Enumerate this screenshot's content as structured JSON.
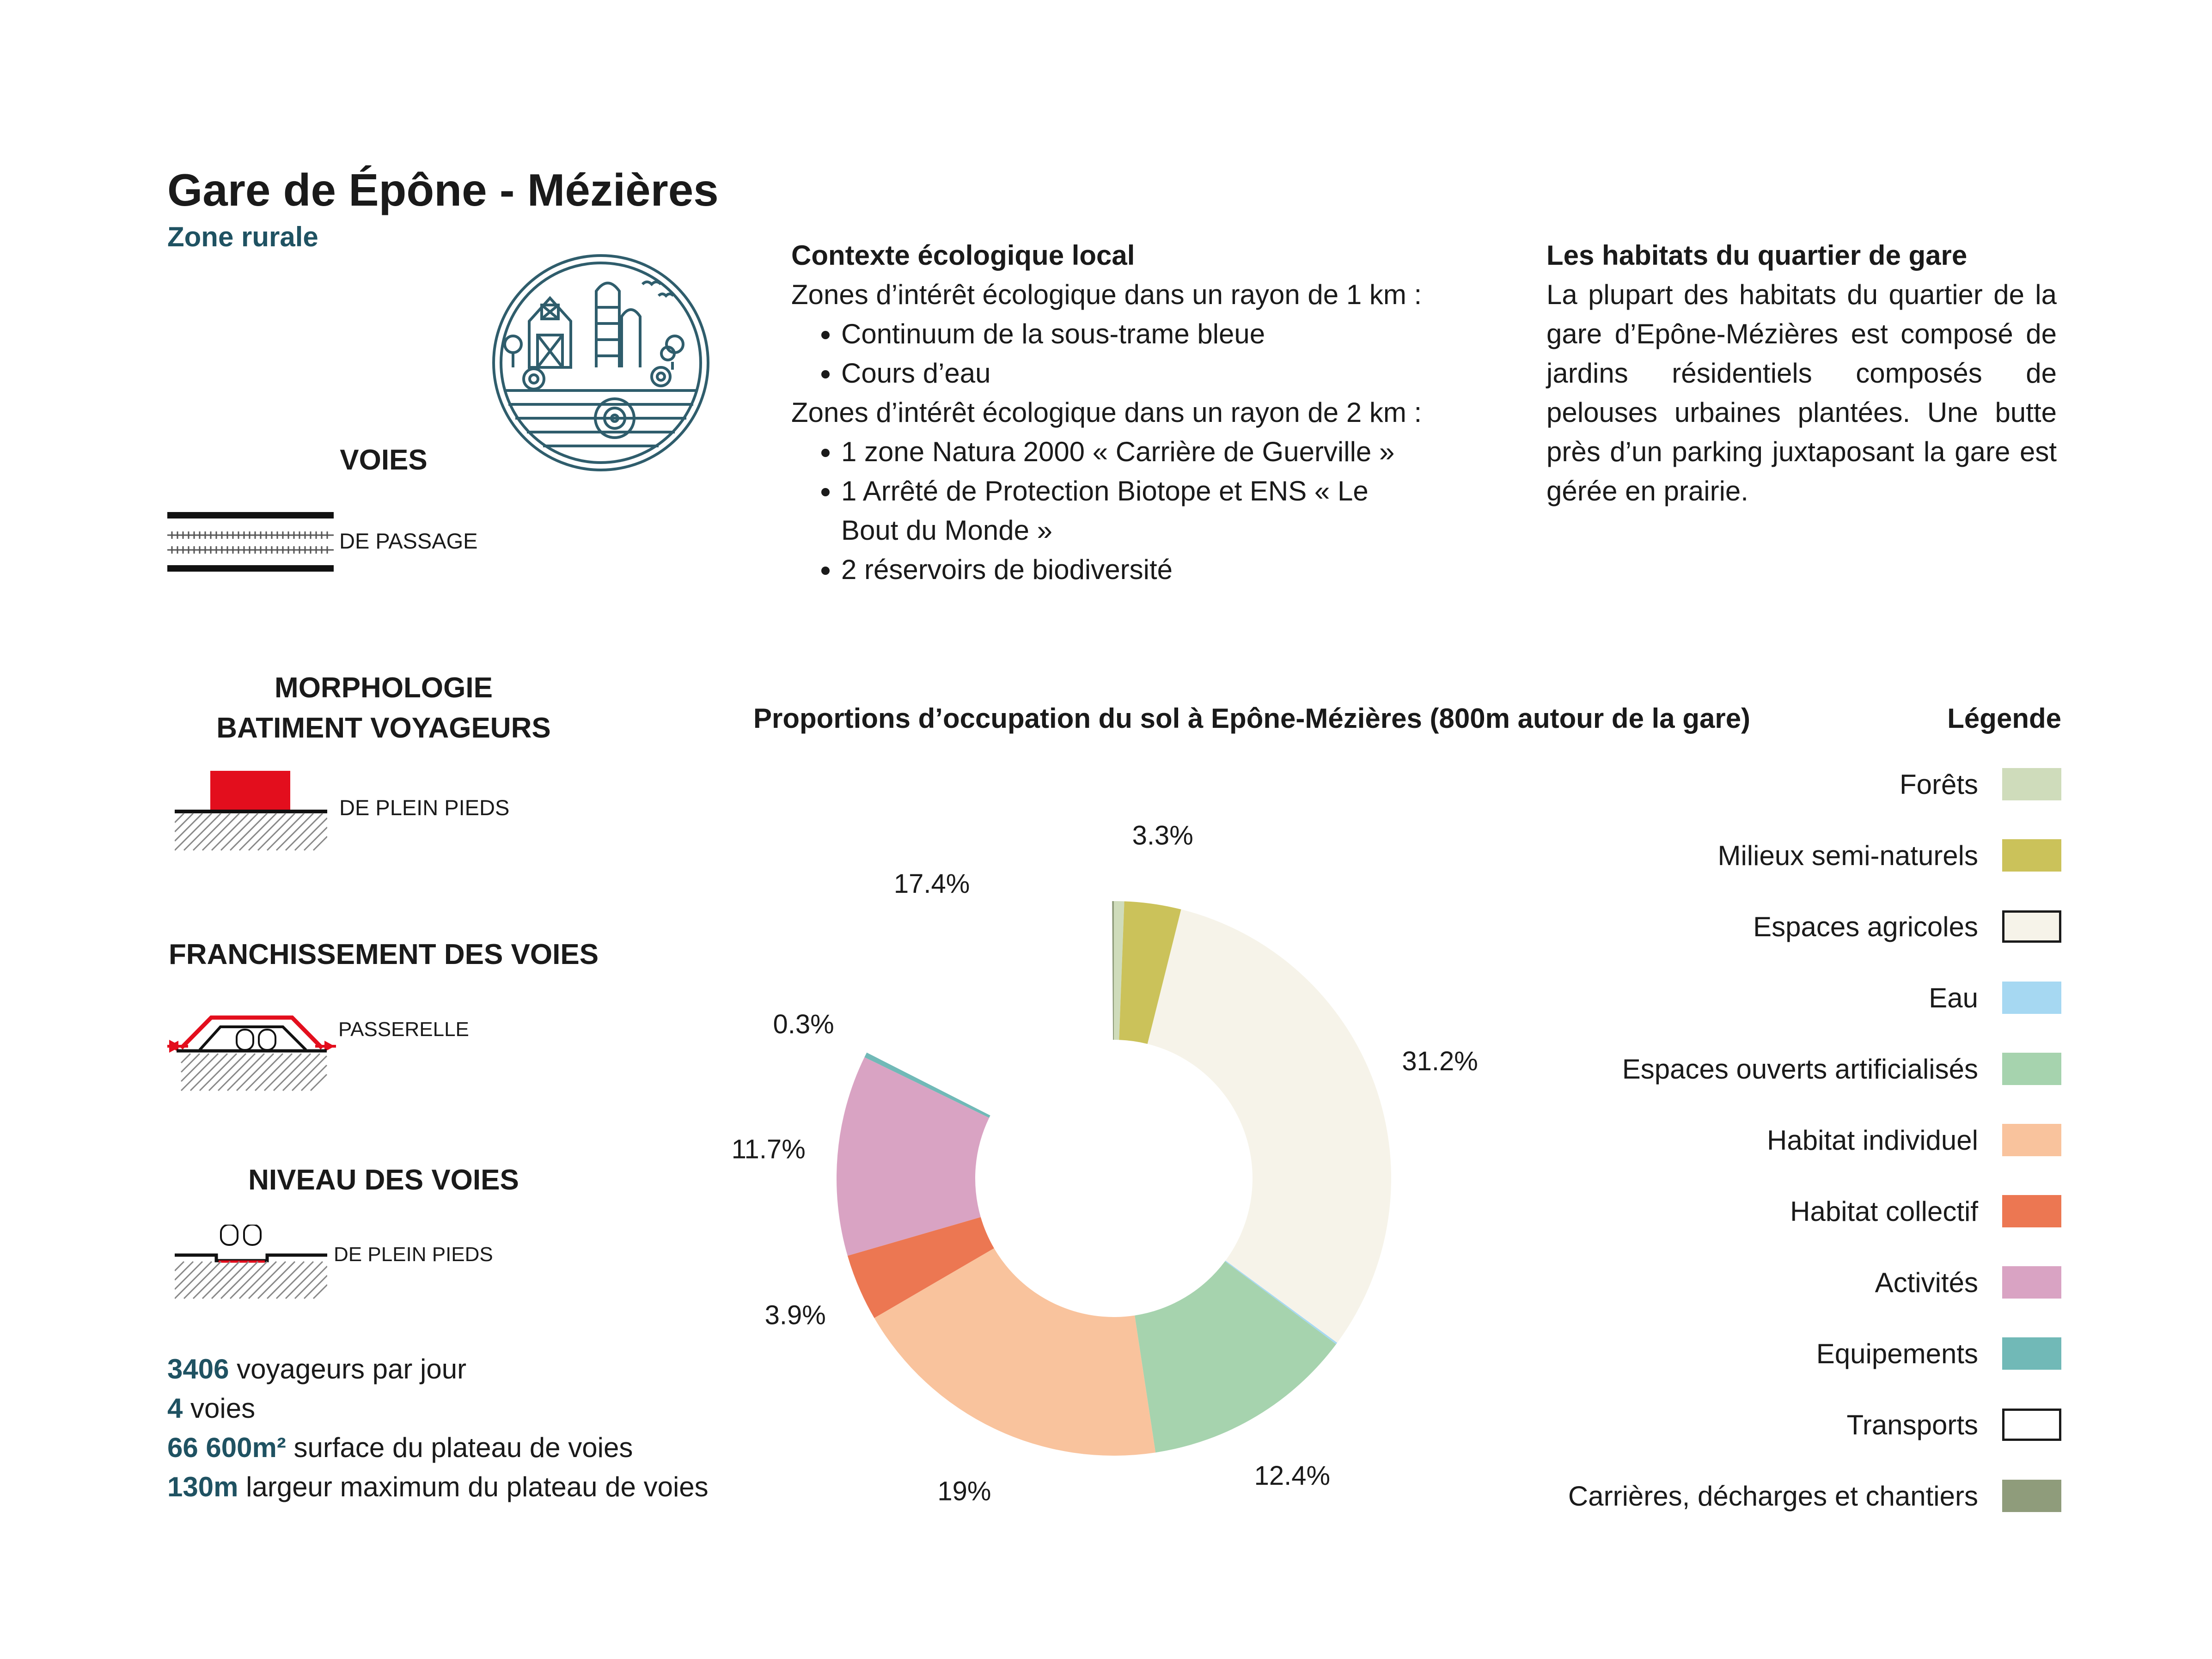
{
  "header": {
    "title": "Gare de Épône - Mézières",
    "subtitle": "Zone rurale"
  },
  "left": {
    "voies_title": "VOIES",
    "voies_label": "DE PASSAGE",
    "morpho_title_line1": "MORPHOLOGIE",
    "morpho_title_line2": "BATIMENT VOYAGEURS",
    "morpho_label": "DE PLEIN PIEDS",
    "franch_title": "FRANCHISSEMENT DES VOIES",
    "franch_label": "PASSERELLE",
    "niveau_title": "NIVEAU DES VOIES",
    "niveau_label": "DE PLEIN PIEDS",
    "stats": [
      {
        "num": "3406",
        "text": " voyageurs par jour"
      },
      {
        "num": "4",
        "text": " voies"
      },
      {
        "num": "66 600m²",
        "text": " surface du plateau de voies"
      },
      {
        "num": "130m",
        "text": " largeur maximum du plateau de voies"
      }
    ]
  },
  "context": {
    "title": "Contexte écologique local",
    "intro1": "Zones d’intérêt écologique dans un rayon de 1 km :",
    "list1": [
      "Continuum de la sous-trame bleue",
      "Cours d’eau"
    ],
    "intro2": "Zones d’intérêt écologique dans un rayon de 2 km :",
    "list2": [
      "1 zone Natura 2000 « Carrière de Guerville »",
      "1 Arrêté de Protection Biotope et ENS « Le Bout du Monde »",
      "2 réservoirs de biodiversité"
    ]
  },
  "habitats": {
    "title": "Les habitats du quartier de gare",
    "text": "La plupart des habitats du quartier de la gare d’Epône-Mézières est composé de jardins résidentiels composés de pelouses urbaines plantées. Une butte près d’un parking juxtaposant la gare est gérée en prairie."
  },
  "chart_data": {
    "type": "pie",
    "title": "Proportions d’occupation du sol à Epône-Mézières (800m autour de la gare)",
    "legend_title": "Légende",
    "legend_position": "right",
    "categories": [
      "Forêts",
      "Milieux semi-naturels",
      "Espaces agricoles",
      "Eau",
      "Espaces ouverts artificialisés",
      "Habitat individuel",
      "Habitat collectif",
      "Activités",
      "Equipements",
      "Transports",
      "Carrières, décharges et chantiers"
    ],
    "values": [
      0.6,
      3.3,
      31.2,
      0.1,
      12.4,
      19,
      3.9,
      11.7,
      0.3,
      17.4,
      0.1
    ],
    "value_labels": [
      "",
      "3.3%",
      "31.2%",
      "",
      "12.4%",
      "19%",
      "3.9%",
      "11.7%",
      "0.3%",
      "17.4%",
      ""
    ],
    "colors": [
      "#cfdcbb",
      "#cbc25a",
      "#f6f3e9",
      "#a6d8f2",
      "#a6d3ae",
      "#f9c39d",
      "#ec7752",
      "#d9a3c3",
      "#71b9b7",
      "#ffffff",
      "#8f9c7b"
    ],
    "swatch_borders": [
      "none",
      "none",
      "#1a1a1a",
      "none",
      "none",
      "none",
      "none",
      "none",
      "none",
      "#1a1a1a",
      "none"
    ]
  }
}
